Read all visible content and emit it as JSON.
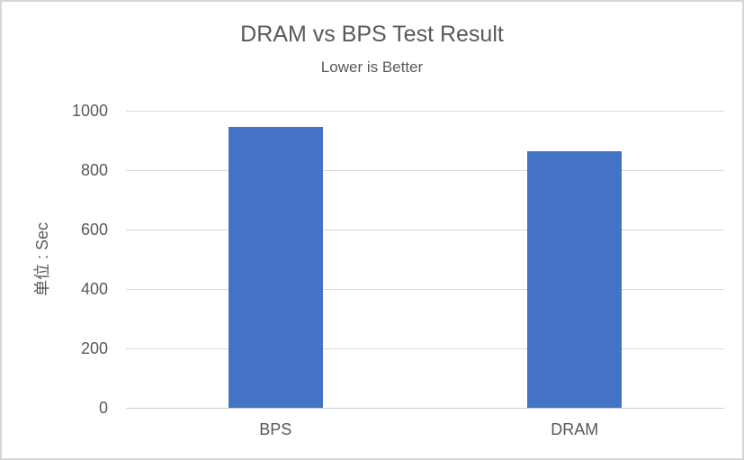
{
  "chart_data": {
    "type": "bar",
    "title": "DRAM vs BPS Test Result",
    "subtitle": "Lower is Better",
    "categories": [
      "BPS",
      "DRAM"
    ],
    "values": [
      945,
      865
    ],
    "xlabel": "",
    "ylabel": "单位 : Sec",
    "ylim": [
      0,
      1000
    ],
    "yticks": [
      0,
      200,
      400,
      600,
      800,
      1000
    ],
    "grid": true,
    "legend": false,
    "layout_hints": {
      "orientation": "vertical",
      "gridlines": "horizontal-only",
      "title_position": "top-center",
      "y_axis_title_rotation": "bottom-to-top"
    },
    "colors": {
      "bar": "#4472c4",
      "title_text": "#595959",
      "axis_text": "#595959",
      "gridline": "#d9d9d9",
      "axis_line": "#cfcfcf",
      "frame_border": "#d6d6d6",
      "background": "#ffffff"
    }
  }
}
